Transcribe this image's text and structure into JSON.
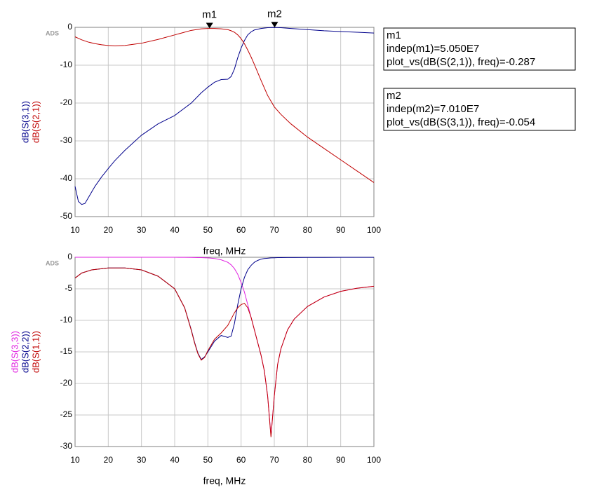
{
  "chart_data": [
    {
      "type": "line",
      "watermark": "ADS",
      "xlabel": "freq, MHz",
      "xlim": [
        10,
        100
      ],
      "xticks": [
        10,
        20,
        30,
        40,
        50,
        60,
        70,
        80,
        90,
        100
      ],
      "ylim": [
        -50,
        0
      ],
      "yticks": [
        0,
        -10,
        -20,
        -30,
        -40,
        -50
      ],
      "grid": true,
      "x": [
        10,
        11,
        12,
        13,
        14,
        16,
        18,
        20,
        22,
        25,
        30,
        35,
        40,
        45,
        48,
        50,
        52,
        54,
        56,
        57,
        58,
        59,
        60,
        61,
        62,
        63,
        64,
        66,
        68,
        70,
        72,
        75,
        80,
        85,
        90,
        95,
        100
      ],
      "series": [
        {
          "name": "dB(S(3,1))",
          "color": "#00008b",
          "values": [
            -42,
            -46,
            -46.8,
            -46.5,
            -45,
            -42,
            -39.5,
            -37.3,
            -35.2,
            -32.5,
            -28.5,
            -25.5,
            -23.3,
            -20,
            -17.3,
            -15.8,
            -14.5,
            -13.8,
            -13.7,
            -13,
            -11,
            -8,
            -5.5,
            -3.5,
            -2,
            -1.2,
            -0.7,
            -0.3,
            -0.1,
            -0.054,
            -0.1,
            -0.3,
            -0.6,
            -0.9,
            -1.1,
            -1.3,
            -1.5
          ]
        },
        {
          "name": "dB(S(2,1))",
          "color": "#c00000",
          "values": [
            -2.5,
            -2.9,
            -3.3,
            -3.6,
            -3.9,
            -4.3,
            -4.6,
            -4.8,
            -4.9,
            -4.8,
            -4.2,
            -3.2,
            -2,
            -0.8,
            -0.4,
            -0.3,
            -0.3,
            -0.4,
            -0.6,
            -0.9,
            -1.3,
            -2,
            -3,
            -4.3,
            -6,
            -7.8,
            -9.8,
            -14,
            -18,
            -21,
            -23,
            -25.5,
            -29,
            -32,
            -35,
            -38,
            -41
          ]
        }
      ],
      "markers": [
        {
          "name": "m1",
          "x": 50.5,
          "y": -0.287,
          "lines": [
            "indep(m1)=5.050E7",
            "plot_vs(dB(S(2,1)), freq)=-0.287"
          ]
        },
        {
          "name": "m2",
          "x": 70.1,
          "y": -0.054,
          "lines": [
            "indep(m2)=7.010E7",
            "plot_vs(dB(S(3,1)), freq)=-0.054"
          ]
        }
      ]
    },
    {
      "type": "line",
      "watermark": "ADS",
      "xlabel": "freq, MHz",
      "xlim": [
        10,
        100
      ],
      "xticks": [
        10,
        20,
        30,
        40,
        50,
        60,
        70,
        80,
        90,
        100
      ],
      "ylim": [
        -30,
        0
      ],
      "yticks": [
        0,
        -5,
        -10,
        -15,
        -20,
        -25,
        -30
      ],
      "grid": true,
      "x": [
        10,
        12,
        15,
        20,
        25,
        30,
        35,
        40,
        43,
        45,
        46,
        47,
        48,
        49,
        50,
        52,
        54,
        56,
        57,
        58,
        59,
        60,
        61,
        62,
        63,
        64,
        65,
        66,
        67,
        68,
        69,
        70,
        71,
        72,
        74,
        76,
        80,
        85,
        90,
        95,
        100
      ],
      "series": [
        {
          "name": "dB(S(3,3))",
          "color": "#e020e0",
          "values": [
            0,
            0,
            0,
            0,
            0,
            0,
            0,
            0,
            -0.02,
            -0.03,
            -0.04,
            -0.05,
            -0.06,
            -0.08,
            -0.1,
            -0.2,
            -0.4,
            -0.8,
            -1.2,
            -1.8,
            -2.7,
            -4,
            -5.5,
            -7.5,
            -9.5,
            -11.5,
            -13.5,
            -15.5,
            -18,
            -22,
            -28.3,
            -22,
            -17,
            -14.5,
            -11.5,
            -9.8,
            -7.8,
            -6.3,
            -5.4,
            -4.9,
            -4.6
          ]
        },
        {
          "name": "dB(S(2,2))",
          "color": "#00008b",
          "values": [
            -3.3,
            -2.5,
            -2,
            -1.7,
            -1.7,
            -2,
            -3,
            -5,
            -8,
            -11.5,
            -13.5,
            -15.2,
            -16.2,
            -15.8,
            -15,
            -13.3,
            -12.4,
            -12.7,
            -12.5,
            -10.5,
            -7.5,
            -5,
            -3.2,
            -2,
            -1.3,
            -0.8,
            -0.5,
            -0.3,
            -0.2,
            -0.15,
            -0.1,
            -0.08,
            -0.06,
            -0.05,
            -0.04,
            -0.04,
            -0.03,
            -0.03,
            -0.02,
            -0.02,
            -0.02
          ]
        },
        {
          "name": "dB(S(1,1))",
          "color": "#c00000",
          "values": [
            -3.3,
            -2.5,
            -2,
            -1.7,
            -1.7,
            -2,
            -3,
            -5,
            -8,
            -11.6,
            -13.6,
            -15.3,
            -16.3,
            -15.9,
            -14.8,
            -13,
            -12,
            -10.8,
            -9.8,
            -8.8,
            -8,
            -7.5,
            -7.3,
            -8,
            -9.5,
            -11.5,
            -13.5,
            -15.5,
            -18,
            -22,
            -28.5,
            -22,
            -17,
            -14.5,
            -11.5,
            -9.8,
            -7.8,
            -6.3,
            -5.4,
            -4.9,
            -4.6
          ]
        }
      ]
    }
  ]
}
